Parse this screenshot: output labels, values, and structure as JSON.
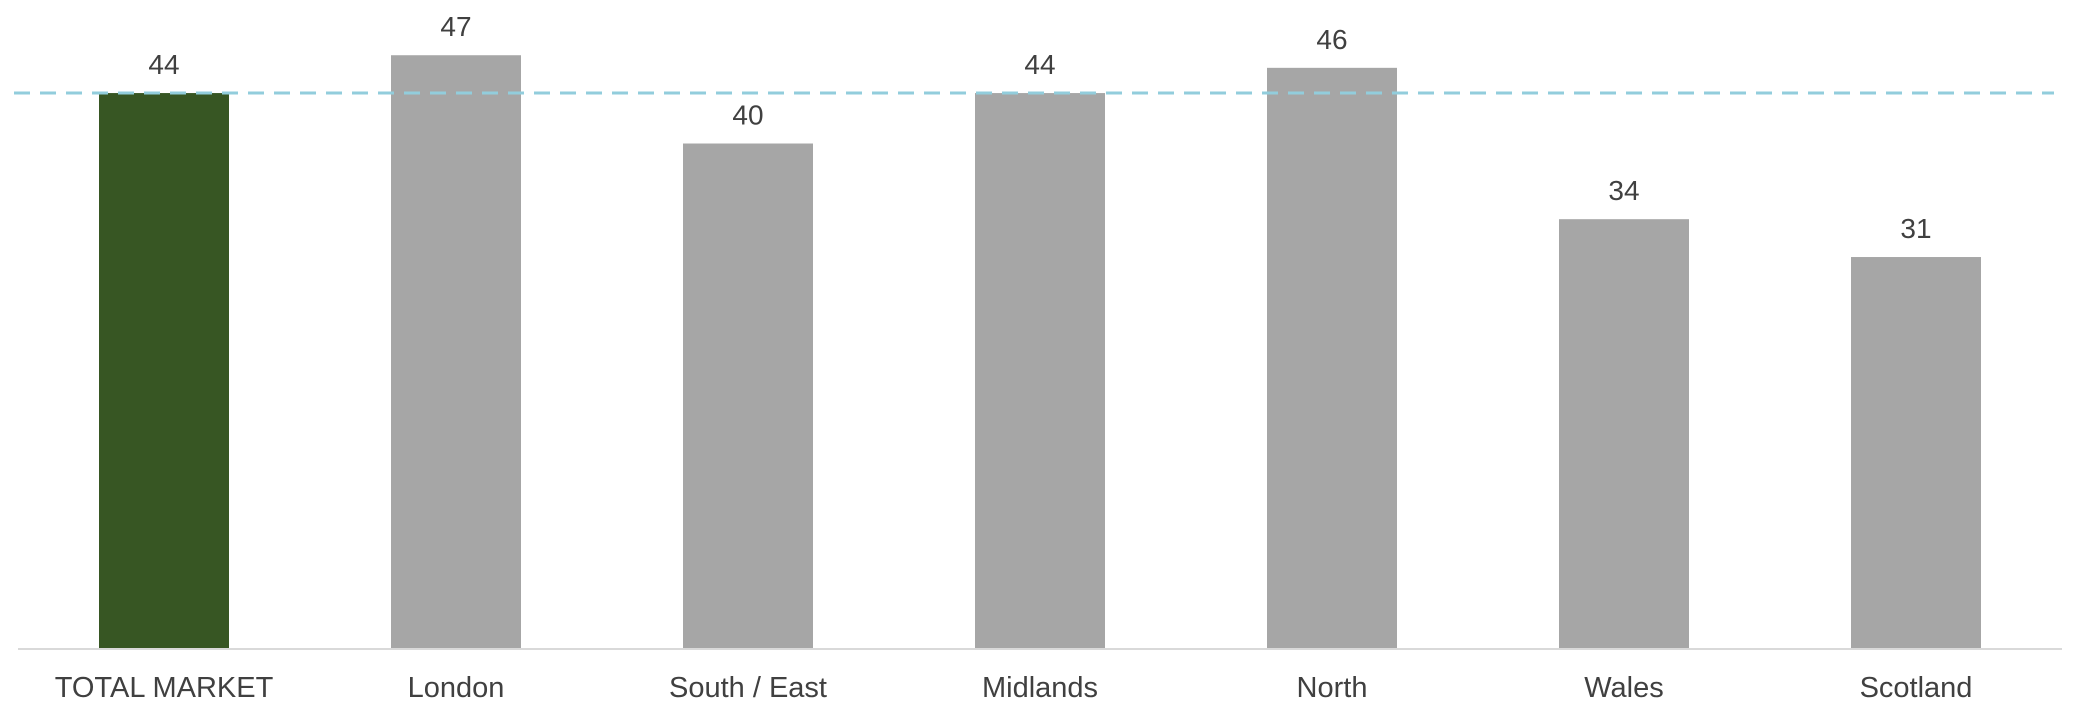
{
  "chart_data": {
    "type": "bar",
    "categories": [
      "TOTAL MARKET",
      "London",
      "South / East",
      "Midlands",
      "North",
      "Wales",
      "Scotland"
    ],
    "values": [
      44,
      47,
      40,
      44,
      46,
      34,
      31
    ],
    "value_labels": [
      "44",
      "47",
      "40",
      "44",
      "46",
      "34",
      "31"
    ],
    "title": "",
    "xlabel": "",
    "ylabel": "",
    "ylim": [
      0,
      49
    ],
    "grid": false,
    "reference_line": {
      "value": 44,
      "style": "dashed",
      "color": "#92CDDC"
    },
    "highlight_index": 0,
    "colors": {
      "highlight": "#375623",
      "bar": "#A6A6A6",
      "axis": "#D9D9D9",
      "text": "#404040"
    }
  }
}
